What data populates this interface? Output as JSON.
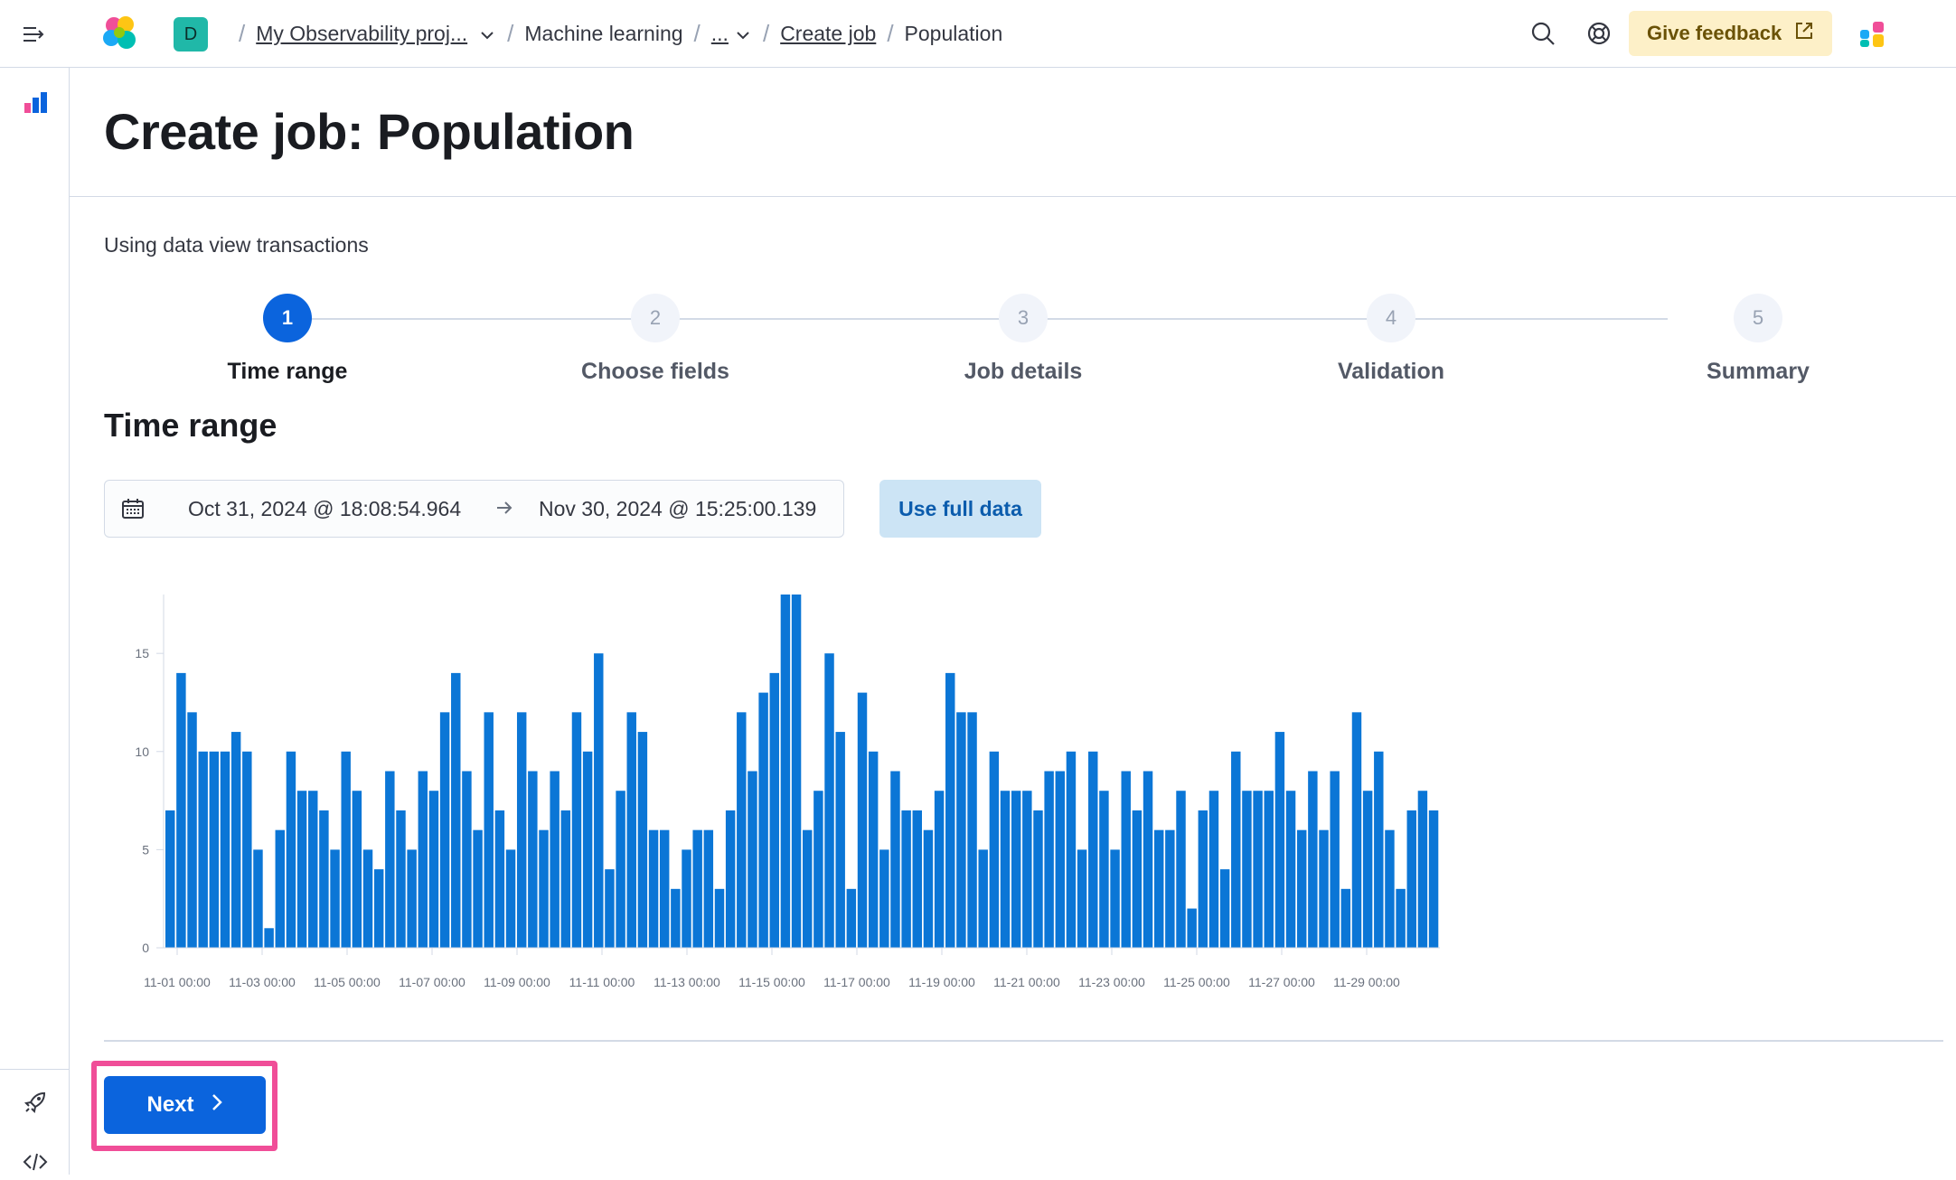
{
  "topbar": {
    "space_initial": "D",
    "breadcrumbs": [
      {
        "label": "My Observability proj...",
        "link": true,
        "dropdown": true
      },
      {
        "label": "Machine learning",
        "link": false
      },
      {
        "label": "...",
        "link": true,
        "dropdown": true
      },
      {
        "label": "Create job",
        "link": true
      },
      {
        "label": "Population",
        "link": false
      }
    ],
    "feedback_label": "Give feedback"
  },
  "page": {
    "title": "Create job: Population",
    "data_view_text": "Using data view transactions",
    "section_title": "Time range"
  },
  "steps": [
    {
      "number": "1",
      "label": "Time range",
      "active": true
    },
    {
      "number": "2",
      "label": "Choose fields",
      "active": false
    },
    {
      "number": "3",
      "label": "Job details",
      "active": false
    },
    {
      "number": "4",
      "label": "Validation",
      "active": false
    },
    {
      "number": "5",
      "label": "Summary",
      "active": false
    }
  ],
  "date_range": {
    "start": "Oct 31, 2024 @ 18:08:54.964",
    "end": "Nov 30, 2024 @ 15:25:00.139"
  },
  "use_full_data_label": "Use full data",
  "next_label": "Next",
  "colors": {
    "accent": "#0b64dd",
    "bar": "#0b76d6",
    "highlight": "#f04e98",
    "feedback_bg": "#fdf0c8"
  },
  "chart_data": {
    "type": "bar",
    "title": "",
    "xlabel": "",
    "ylabel": "",
    "ylim": [
      0,
      18
    ],
    "yticks": [
      0,
      5,
      10,
      15
    ],
    "xtick_labels": [
      "11-01 00:00",
      "11-03 00:00",
      "11-05 00:00",
      "11-07 00:00",
      "11-09 00:00",
      "11-11 00:00",
      "11-13 00:00",
      "11-15 00:00",
      "11-17 00:00",
      "11-19 00:00",
      "11-21 00:00",
      "11-23 00:00",
      "11-25 00:00",
      "11-27 00:00",
      "11-29 00:00"
    ],
    "grid": false,
    "values": [
      7,
      14,
      12,
      10,
      10,
      10,
      11,
      10,
      5,
      1,
      6,
      10,
      8,
      8,
      7,
      5,
      10,
      8,
      5,
      4,
      9,
      7,
      5,
      9,
      8,
      12,
      14,
      9,
      6,
      12,
      7,
      5,
      12,
      9,
      6,
      9,
      7,
      12,
      10,
      15,
      4,
      8,
      12,
      11,
      6,
      6,
      3,
      5,
      6,
      6,
      3,
      7,
      12,
      9,
      13,
      14,
      18,
      18,
      6,
      8,
      15,
      11,
      3,
      13,
      10,
      5,
      9,
      7,
      7,
      6,
      8,
      14,
      12,
      12,
      5,
      10,
      8,
      8,
      8,
      7,
      9,
      9,
      10,
      5,
      10,
      8,
      5,
      9,
      7,
      9,
      6,
      6,
      8,
      2,
      7,
      8,
      4,
      10,
      8,
      8,
      8,
      11,
      8,
      6,
      9,
      6,
      9,
      3,
      12,
      8,
      10,
      6,
      3,
      7,
      8,
      7
    ]
  }
}
